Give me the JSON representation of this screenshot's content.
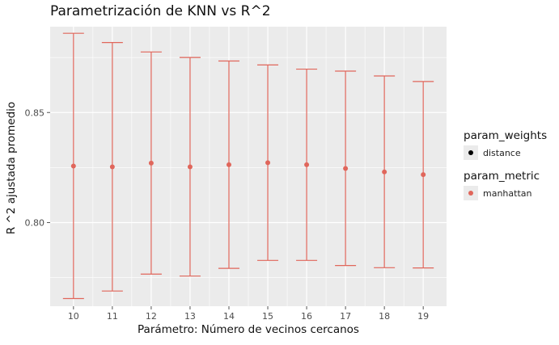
{
  "chart_data": {
    "type": "scatter",
    "title": "Parametrización de KNN vs R^2",
    "xlabel": "Parámetro: Número de vecinos cercanos",
    "ylabel": "R ^2 ajustada promedio",
    "x": [
      10,
      11,
      12,
      13,
      14,
      15,
      16,
      17,
      18,
      19
    ],
    "x_ticks": [
      "10",
      "11",
      "12",
      "13",
      "14",
      "15",
      "16",
      "17",
      "18",
      "19"
    ],
    "y_ticks": [
      0.8,
      0.85
    ],
    "y_tick_labels": [
      "0.80",
      "0.85"
    ],
    "ylim": [
      0.762,
      0.889
    ],
    "series": [
      {
        "name": "manhattan",
        "color": "#E0665B",
        "mean": [
          0.8257,
          0.8253,
          0.827,
          0.8253,
          0.8263,
          0.8272,
          0.8263,
          0.8246,
          0.823,
          0.8218
        ],
        "upper": [
          0.886,
          0.8818,
          0.8775,
          0.875,
          0.8734,
          0.8716,
          0.8697,
          0.8688,
          0.8666,
          0.8641
        ],
        "lower": [
          0.7655,
          0.7689,
          0.7766,
          0.7757,
          0.7792,
          0.7828,
          0.7828,
          0.7805,
          0.7795,
          0.7794
        ]
      }
    ],
    "grid": true,
    "legend_position": "right",
    "legend": [
      {
        "title": "param_weights",
        "items": [
          {
            "label": "distance",
            "color": "#000000"
          }
        ]
      },
      {
        "title": "param_metric",
        "items": [
          {
            "label": "manhattan",
            "color": "#E0665B"
          }
        ]
      }
    ]
  }
}
